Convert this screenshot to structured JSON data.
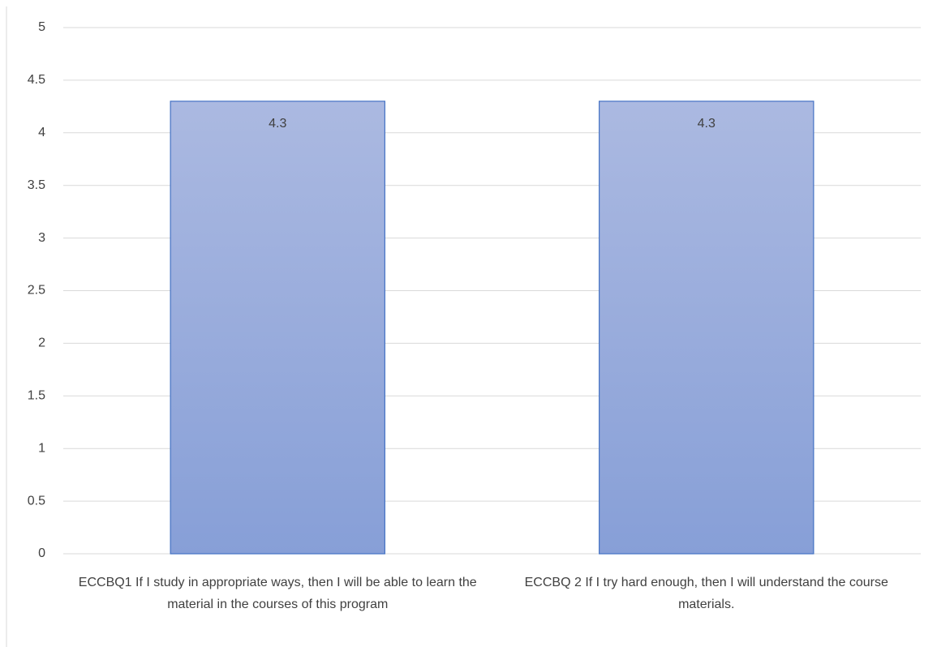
{
  "chart_data": {
    "type": "bar",
    "categories": [
      "ECCBQ1 If I study in appropriate ways, then I will be able to learn the material in the courses of this program",
      "ECCBQ 2 If I try hard enough, then I will understand the course materials."
    ],
    "values": [
      4.3,
      4.3
    ],
    "color": "#8fa5d9",
    "ylim": [
      0,
      5
    ],
    "yticks": [
      0,
      0.5,
      1,
      1.5,
      2,
      2.5,
      3,
      3.5,
      4,
      4.5,
      5
    ],
    "grid": true
  }
}
